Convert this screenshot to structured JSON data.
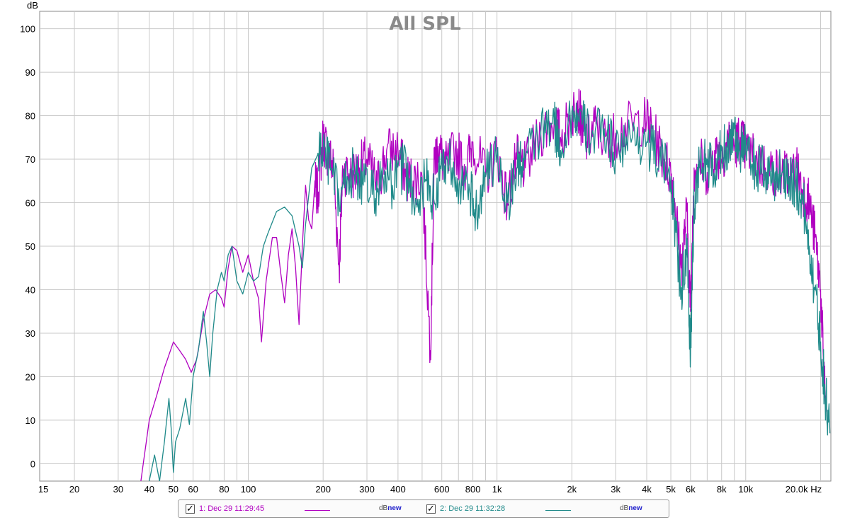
{
  "chart_data": {
    "type": "line",
    "title": "All SPL",
    "ylabel": "dB",
    "xlabel": "Hz",
    "x_scale": "log",
    "xlim": [
      14.5,
      22000
    ],
    "ylim": [
      -4,
      104
    ],
    "grid": true,
    "x_ticks": [
      15,
      20,
      30,
      40,
      50,
      60,
      80,
      100,
      200,
      300,
      400,
      600,
      800,
      1000,
      2000,
      3000,
      4000,
      5000,
      6000,
      8000,
      10000,
      20000
    ],
    "x_tick_labels": [
      "15",
      "20",
      "30",
      "40",
      "50",
      "60",
      "80",
      "100",
      "200",
      "300",
      "400",
      "600",
      "800",
      "1k",
      "2k",
      "3k",
      "4k",
      "5k",
      "6k",
      "8k",
      "10k",
      "20.0k Hz"
    ],
    "y_ticks": [
      0,
      10,
      20,
      30,
      40,
      50,
      60,
      70,
      80,
      90,
      100
    ],
    "y_tick_labels": [
      "0",
      "10",
      "20",
      "30",
      "40",
      "50",
      "60",
      "70",
      "80",
      "90",
      "100"
    ],
    "series": [
      {
        "name": "1: Dec 29 11:29:45",
        "color": "#b000c0",
        "x": [
          37,
          40,
          43,
          46,
          48,
          50,
          53,
          56,
          59,
          62,
          66,
          70,
          74,
          78,
          80,
          83,
          86,
          90,
          95,
          100,
          105,
          110,
          113,
          118,
          125,
          130,
          135,
          140,
          145,
          150,
          155,
          160,
          165,
          170,
          175,
          180,
          185,
          190,
          200,
          210,
          220,
          232,
          240,
          260,
          280,
          300,
          330,
          360,
          400,
          430,
          460,
          500,
          540,
          560,
          580,
          620,
          680,
          750,
          800,
          900,
          1000,
          1100,
          1200,
          1300,
          1500,
          1700,
          1800,
          2000,
          2100,
          2200,
          2300,
          2500,
          2800,
          3000,
          3500,
          4000,
          4300,
          4700,
          5000,
          5200,
          5500,
          5800,
          6000,
          6200,
          6500,
          7000,
          7500,
          8000,
          8500,
          9000,
          9500,
          10000,
          11000,
          12000,
          13000,
          14000,
          15000,
          16000,
          17000,
          18000,
          19000,
          20000,
          20500,
          21000
        ],
        "y": [
          -4,
          10,
          16,
          22,
          25,
          28,
          26,
          24,
          21,
          24,
          33,
          39,
          40,
          38,
          36,
          45,
          50,
          49,
          44,
          48,
          42,
          38,
          28,
          42,
          52,
          52,
          44,
          37,
          48,
          54,
          45,
          32,
          50,
          64,
          56,
          54,
          64,
          62,
          75,
          71,
          68,
          45,
          68,
          66,
          68,
          70,
          64,
          72,
          72,
          66,
          65,
          66,
          26,
          70,
          73,
          68,
          72,
          68,
          74,
          66,
          72,
          60,
          70,
          68,
          76,
          79,
          75,
          80,
          83,
          78,
          74,
          78,
          73,
          76,
          78,
          79,
          75,
          70,
          67,
          60,
          45,
          58,
          35,
          68,
          70,
          67,
          72,
          70,
          75,
          73,
          75,
          72,
          70,
          68,
          67,
          67,
          66,
          68,
          63,
          60,
          52,
          40,
          25,
          12
        ]
      },
      {
        "name": "2: Dec 29 11:32:28",
        "color": "#208a8a",
        "x": [
          40,
          42,
          44,
          46,
          48,
          49,
          50,
          51,
          53,
          56,
          58,
          60,
          63,
          66,
          68,
          70,
          72,
          75,
          78,
          80,
          83,
          86,
          90,
          95,
          100,
          105,
          110,
          115,
          120,
          130,
          140,
          150,
          160,
          165,
          170,
          180,
          190,
          200,
          215,
          232,
          250,
          270,
          290,
          320,
          350,
          380,
          420,
          470,
          520,
          560,
          600,
          650,
          720,
          780,
          820,
          900,
          1000,
          1100,
          1200,
          1300,
          1500,
          1700,
          1800,
          2000,
          2200,
          2400,
          2700,
          3000,
          3500,
          4000,
          4500,
          5000,
          5200,
          5500,
          5800,
          6000,
          6200,
          6500,
          7000,
          7500,
          8000,
          8500,
          9000,
          9500,
          10000,
          11000,
          12000,
          13000,
          14000,
          15000,
          16000,
          17000,
          18000,
          19000,
          20000,
          21000,
          21800
        ],
        "y": [
          -4,
          2,
          -4,
          5,
          15,
          8,
          -2,
          5,
          8,
          15,
          9,
          20,
          26,
          35,
          28,
          20,
          30,
          40,
          44,
          42,
          48,
          50,
          42,
          39,
          44,
          42,
          43,
          50,
          53,
          58,
          59,
          57,
          50,
          45,
          55,
          68,
          71,
          72,
          68,
          60,
          66,
          67,
          64,
          62,
          65,
          64,
          68,
          61,
          65,
          60,
          69,
          70,
          64,
          62,
          58,
          66,
          71,
          60,
          68,
          70,
          76,
          78,
          72,
          81,
          78,
          75,
          77,
          72,
          75,
          74,
          70,
          66,
          55,
          40,
          48,
          25,
          60,
          68,
          70,
          66,
          72,
          73,
          77,
          72,
          72,
          68,
          67,
          66,
          67,
          66,
          64,
          60,
          50,
          40,
          28,
          15,
          7
        ]
      }
    ]
  },
  "legend": {
    "items": [
      {
        "label": "1: Dec 29 11:29:45",
        "color": "#b000c0",
        "db_prefix": "dB",
        "db_suffix": "new"
      },
      {
        "label": "2: Dec 29 11:32:28",
        "color": "#208a8a",
        "db_prefix": "dB",
        "db_suffix": "new"
      }
    ],
    "check_glyph": "✓"
  }
}
